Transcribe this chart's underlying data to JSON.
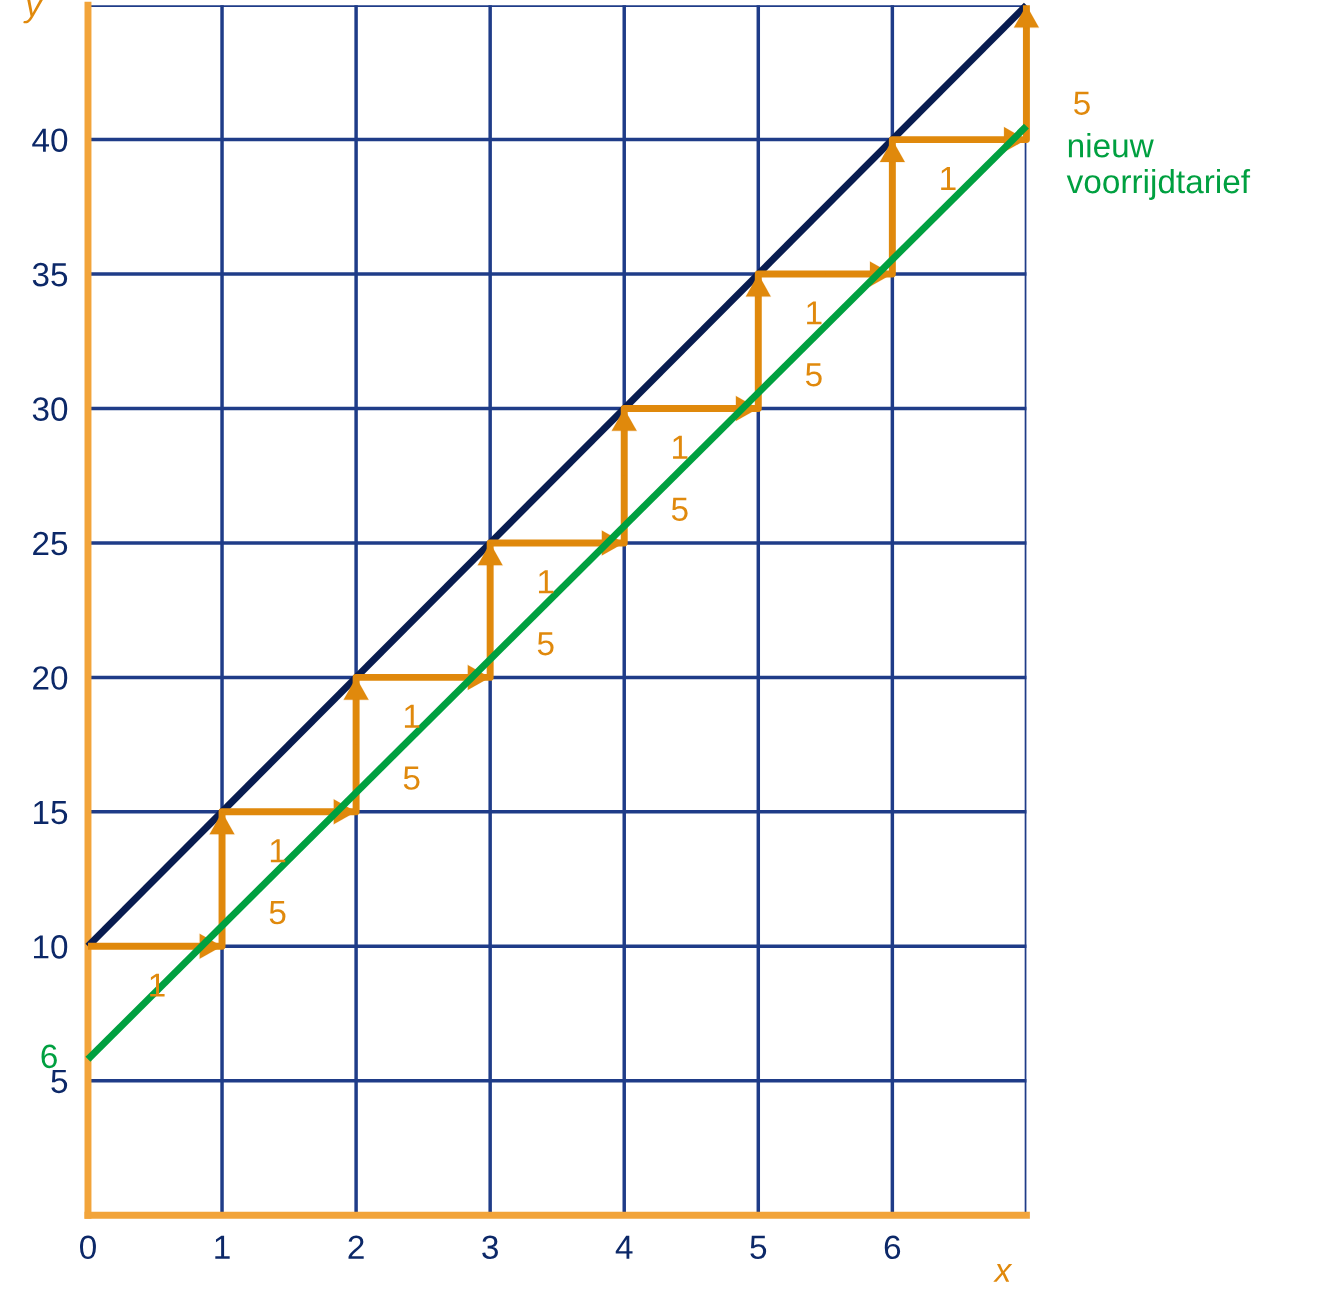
{
  "chart_data": {
    "type": "line",
    "xlabel": "x",
    "ylabel": "y",
    "xlim": [
      0,
      7
    ],
    "ylim": [
      0,
      45
    ],
    "xticks": [
      0,
      1,
      2,
      3,
      4,
      5,
      6,
      {
        "value": 7,
        "label": null
      }
    ],
    "yticks": [
      5,
      10,
      15,
      20,
      25,
      30,
      35,
      40,
      {
        "value": 45,
        "label": null
      }
    ],
    "grid": true,
    "marker": "none",
    "line_style": "solid",
    "series": [
      {
        "color": "#081c50",
        "x": [
          0,
          7
        ],
        "values": [
          10,
          45
        ]
      },
      {
        "color": "#e0890c",
        "x": [
          0,
          1,
          1,
          2,
          2,
          3,
          3,
          4,
          4,
          5,
          5,
          6,
          6,
          7,
          7
        ],
        "values": [
          10,
          10,
          15,
          15,
          20,
          20,
          25,
          25,
          30,
          30,
          35,
          35,
          40,
          40,
          45
        ]
      },
      {
        "name": "nieuw\nvoorrijdtarief",
        "color": "#00a040",
        "x": [
          0,
          7
        ],
        "values": [
          5.8,
          40.5
        ]
      }
    ],
    "annotations": [
      {
        "text": "6",
        "x": 0,
        "y": 5.8
      },
      {
        "text": "1",
        "x": 0.1,
        "y": 10
      },
      {
        "text": "1",
        "x": 1,
        "y": 15
      },
      {
        "text": "5",
        "x": 1,
        "y": 12.7
      },
      {
        "text": "1",
        "x": 2,
        "y": 20
      },
      {
        "text": "5",
        "x": 2,
        "y": 17.7
      },
      {
        "text": "1",
        "x": 3,
        "y": 25
      },
      {
        "text": "5",
        "x": 3,
        "y": 22.7
      },
      {
        "text": "1",
        "x": 4,
        "y": 30
      },
      {
        "text": "5",
        "x": 4,
        "y": 27.7
      },
      {
        "text": "1",
        "x": 5,
        "y": 35
      },
      {
        "text": "5",
        "x": 5,
        "y": 32.7
      },
      {
        "text": "1",
        "x": 6,
        "y": 40
      },
      {
        "text": "5",
        "x": 7,
        "y": 42.8
      }
    ]
  }
}
